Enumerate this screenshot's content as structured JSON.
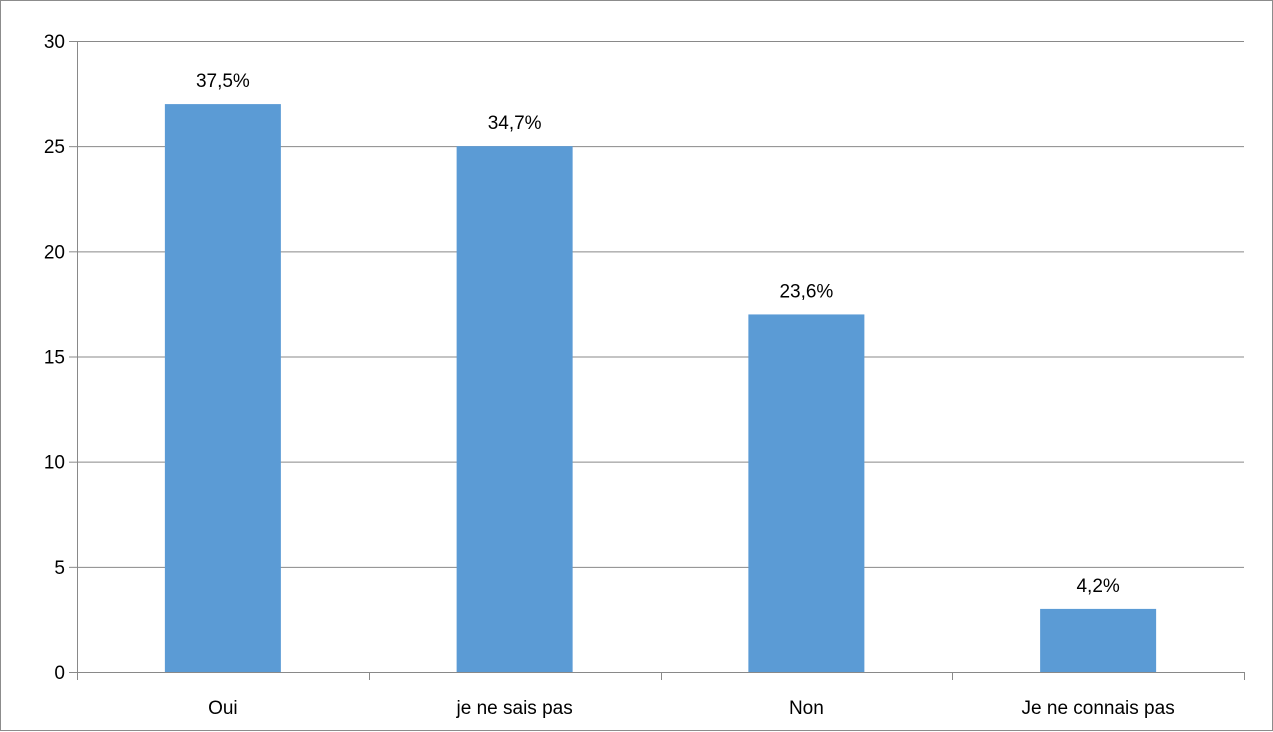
{
  "chart_data": {
    "type": "bar",
    "categories": [
      "Oui",
      "je ne sais pas",
      "Non",
      "Je ne connais pas"
    ],
    "values": [
      27,
      25,
      17,
      3
    ],
    "data_labels": [
      "37,5%",
      "34,7%",
      "23,6%",
      "4,2%"
    ],
    "ylim": [
      0,
      30
    ],
    "yticks": [
      0,
      5,
      10,
      15,
      20,
      25,
      30
    ],
    "ytick_labels": [
      "0",
      "5",
      "10",
      "15",
      "20",
      "25",
      "30"
    ],
    "grid": true,
    "legend": "none",
    "bar_color": "#5b9bd5",
    "grid_color": "#898989"
  }
}
